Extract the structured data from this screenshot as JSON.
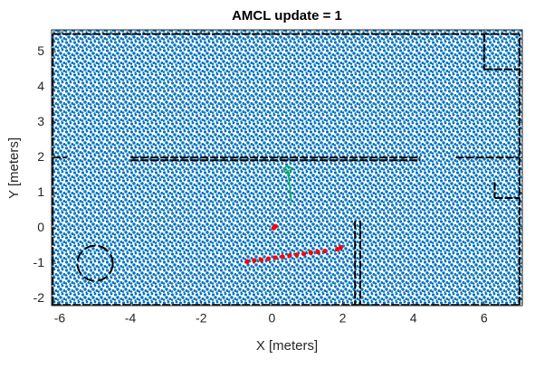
{
  "chart_data": {
    "type": "map",
    "title": "AMCL update = 1",
    "xlabel": "X [meters]",
    "ylabel": "Y [meters]",
    "xlim": [
      -6.23,
      7.08
    ],
    "ylim": [
      -2.2,
      5.62
    ],
    "xticks": [
      -6,
      -4,
      -2,
      0,
      2,
      4,
      6
    ],
    "yticks": [
      -2,
      -1,
      0,
      1,
      2,
      3,
      4,
      5
    ],
    "particle_color": "#0072bd",
    "wall_color": "#000000",
    "map_walls": [
      [
        -6.2,
        5.5,
        7.0,
        5.5
      ],
      [
        -6.2,
        -2.18,
        7.0,
        -2.18
      ],
      [
        -6.2,
        -2.18,
        -6.2,
        5.5
      ],
      [
        7.0,
        -2.18,
        7.0,
        5.5
      ],
      [
        -6.2,
        2.0,
        -5.8,
        2.0
      ],
      [
        -4.0,
        2.0,
        4.2,
        2.0
      ],
      [
        -4.0,
        1.92,
        4.2,
        1.92
      ],
      [
        2.35,
        0.2,
        2.35,
        -2.18
      ],
      [
        2.5,
        0.2,
        2.5,
        -2.18
      ],
      [
        6.0,
        4.5,
        7.0,
        4.5
      ],
      [
        6.0,
        5.5,
        6.0,
        4.5
      ],
      [
        5.2,
        2.0,
        7.0,
        2.0
      ],
      [
        6.3,
        0.85,
        7.0,
        0.85
      ],
      [
        6.3,
        1.3,
        6.3,
        0.85
      ]
    ],
    "obstacles": [
      {
        "x": -5.0,
        "y": -1.0,
        "r": 0.5
      }
    ],
    "scan_color": "#ff0000",
    "scan_x": [
      -0.7,
      -0.5,
      -0.3,
      -0.1,
      0.1,
      0.3,
      0.5,
      0.7,
      0.9,
      1.1,
      1.3,
      1.5,
      0.05,
      0.1,
      1.85,
      1.95
    ],
    "scan_y": [
      -0.95,
      -0.92,
      -0.9,
      -0.87,
      -0.84,
      -0.81,
      -0.78,
      -0.76,
      -0.73,
      -0.7,
      -0.68,
      -0.65,
      0.0,
      0.05,
      -0.6,
      -0.55
    ],
    "pose_color": "#00b050",
    "pose_x": 0.45,
    "pose_y": 1.65,
    "heading_x": 0.55,
    "heading_y": 0.75
  }
}
